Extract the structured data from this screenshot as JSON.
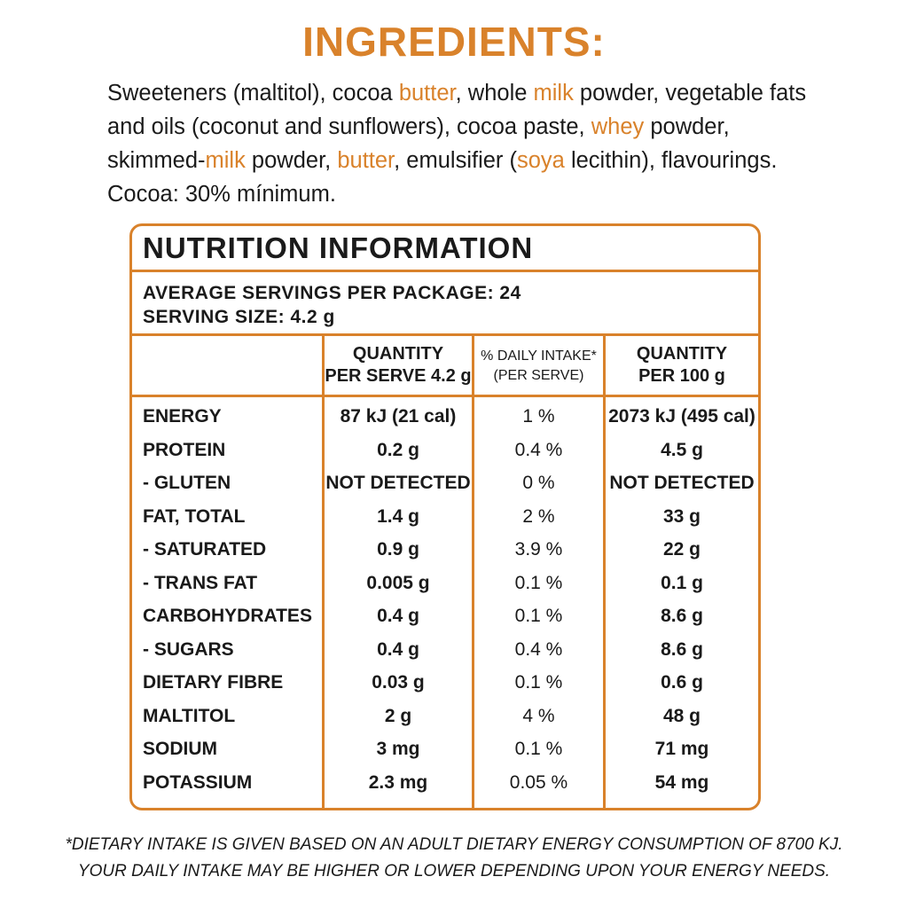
{
  "ingredients": {
    "title": "INGREDIENTS:",
    "segments": [
      {
        "text": "Sweeteners (maltitol), cocoa ",
        "highlight": false
      },
      {
        "text": "butter",
        "highlight": true
      },
      {
        "text": ", whole ",
        "highlight": false
      },
      {
        "text": "milk",
        "highlight": true
      },
      {
        "text": " powder, vegetable fats and oils (coconut and sunflowers), cocoa paste, ",
        "highlight": false
      },
      {
        "text": "whey",
        "highlight": true
      },
      {
        "text": " powder, skimmed-",
        "highlight": false
      },
      {
        "text": "milk",
        "highlight": true
      },
      {
        "text": " powder, ",
        "highlight": false
      },
      {
        "text": "butter",
        "highlight": true
      },
      {
        "text": ", emulsifier (",
        "highlight": false
      },
      {
        "text": "soya",
        "highlight": true
      },
      {
        "text": " lecithin), flavourings.",
        "highlight": false
      }
    ],
    "cocoa": "Cocoa: 30% mínimum."
  },
  "nutrition": {
    "title": "NUTRITION INFORMATION",
    "servings_per_package": "AVERAGE SERVINGS PER PACKAGE: 24",
    "serving_size": "SERVING SIZE: 4.2 g",
    "columns": [
      {
        "line1": "QUANTITY",
        "line2": "PER SERVE 4.2 g"
      },
      {
        "line1": "% DAILY INTAKE*",
        "line2": "(PER SERVE)"
      },
      {
        "line1": "QUANTITY",
        "line2": "PER 100 g"
      }
    ],
    "rows": [
      {
        "name": "ENERGY",
        "per_serve": "87 kJ (21 cal)",
        "daily": "1 %",
        "per_100g": "2073 kJ (495 cal)"
      },
      {
        "name": "PROTEIN",
        "per_serve": "0.2 g",
        "daily": "0.4 %",
        "per_100g": "4.5 g"
      },
      {
        "name": "- GLUTEN",
        "per_serve": "NOT DETECTED",
        "daily": "0 %",
        "per_100g": "NOT DETECTED"
      },
      {
        "name": "FAT, TOTAL",
        "per_serve": "1.4 g",
        "daily": "2 %",
        "per_100g": "33 g"
      },
      {
        "name": "- SATURATED",
        "per_serve": "0.9 g",
        "daily": "3.9 %",
        "per_100g": "22 g"
      },
      {
        "name": "- TRANS FAT",
        "per_serve": "0.005 g",
        "daily": "0.1 %",
        "per_100g": "0.1 g"
      },
      {
        "name": "CARBOHYDRATES",
        "per_serve": "0.4 g",
        "daily": "0.1 %",
        "per_100g": "8.6 g"
      },
      {
        "name": "- SUGARS",
        "per_serve": "0.4 g",
        "daily": "0.4 %",
        "per_100g": "8.6 g"
      },
      {
        "name": "DIETARY FIBRE",
        "per_serve": "0.03 g",
        "daily": "0.1 %",
        "per_100g": "0.6 g"
      },
      {
        "name": "MALTITOL",
        "per_serve": "2 g",
        "daily": "4 %",
        "per_100g": "48 g"
      },
      {
        "name": "SODIUM",
        "per_serve": "3 mg",
        "daily": "0.1 %",
        "per_100g": "71 mg"
      },
      {
        "name": "POTASSIUM",
        "per_serve": "2.3 mg",
        "daily": "0.05 %",
        "per_100g": "54 mg"
      }
    ]
  },
  "footnote": {
    "line1": "*DIETARY INTAKE IS GIVEN BASED ON AN ADULT DIETARY ENERGY CONSUMPTION OF 8700 KJ.",
    "line2": "YOUR DAILY INTAKE MAY BE HIGHER OR LOWER DEPENDING UPON YOUR ENERGY NEEDS."
  },
  "colors": {
    "accent": "#d9822b",
    "text": "#1a1a1a",
    "background": "#ffffff"
  }
}
